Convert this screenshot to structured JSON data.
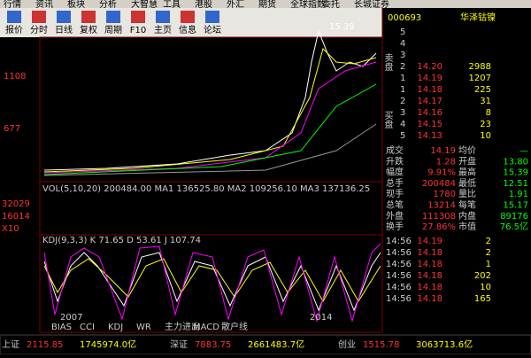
{
  "menu": [
    "行情",
    "资讯",
    "板块",
    "分析",
    "大智慧",
    "工具",
    "港股",
    "外汇",
    "期货",
    "全球指数",
    "委托",
    "长城证券"
  ],
  "toolbar": [
    "报价",
    "分时",
    "日线",
    "复权",
    "周期",
    "F10",
    "主页",
    "信息",
    "论坛"
  ],
  "chart": {
    "price_high": "15.39",
    "y_labels": [
      "1108",
      "677"
    ],
    "vol_labels": [
      "32029",
      "16014",
      "X10"
    ],
    "vol_indicator": "VOL(5,10,20) 200484.00 MA1 136525.80 MA2 109256.10 MA3 137136.25",
    "kdj_indicator": "KDJ(9,3,3) K 71.65 D 53.61 J 107.74",
    "x_labels": [
      "2007",
      "2014"
    ],
    "tabs": [
      "BIAS",
      "CCI",
      "KDJ",
      "WR",
      "主力进出",
      "MACD",
      "散户线"
    ]
  },
  "quote": {
    "code": "000693",
    "name": "华泽钴镍",
    "sell_label": "卖盘",
    "buy_label": "买盘",
    "sell": [
      [
        "5"
      ],
      [
        "4"
      ],
      [
        "3"
      ],
      [
        "2",
        "14.20",
        "2988"
      ],
      [
        "1",
        "14.19",
        "1207"
      ]
    ],
    "buy": [
      [
        "1",
        "14.18",
        "225"
      ],
      [
        "2",
        "14.17",
        "31"
      ],
      [
        "3",
        "14.16",
        "8"
      ],
      [
        "4",
        "14.15",
        "23"
      ],
      [
        "5",
        "14.13",
        "10"
      ]
    ],
    "stats": [
      [
        "成交",
        "14.19",
        "均价",
        "—"
      ],
      [
        "升跌",
        "1.28",
        "开盘",
        "13.80"
      ],
      [
        "幅度",
        "9.91%",
        "最高",
        "15.39"
      ],
      [
        "总手",
        "200484",
        "最低",
        "12.51"
      ],
      [
        "现手",
        "1780",
        "量比",
        "1.91"
      ],
      [
        "总笔",
        "13214",
        "每笔",
        "15.17"
      ],
      [
        "外盘",
        "111308",
        "内盘",
        "89176"
      ],
      [
        "换手",
        "27.86%",
        "市值",
        "76.5亿"
      ]
    ],
    "ticks": [
      [
        "14:56",
        "14.19",
        "2"
      ],
      [
        "14:56",
        "14.18",
        "2"
      ],
      [
        "14:56",
        "14.18",
        "1"
      ],
      [
        "14:56",
        "14.18",
        "202"
      ],
      [
        "14:56",
        "14.18",
        "10"
      ],
      [
        "14:56",
        "14.18",
        "165"
      ]
    ]
  },
  "status": [
    [
      "上证",
      "2115.85",
      "1745974.0亿"
    ],
    [
      "深证",
      "7883.75",
      "2661483.7亿"
    ],
    [
      "创业",
      "1515.78",
      "3063713.6亿"
    ]
  ]
}
